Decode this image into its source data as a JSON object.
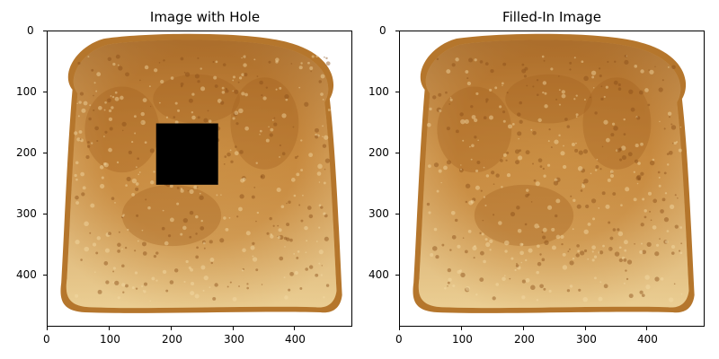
{
  "figure": {
    "panels": [
      {
        "title": "Image with Hole",
        "hole": true,
        "x_ticks": [
          "0",
          "100",
          "200",
          "300",
          "400"
        ],
        "y_ticks": [
          "0",
          "100",
          "200",
          "300",
          "400"
        ]
      },
      {
        "title": "Filled-In Image",
        "hole": false,
        "x_ticks": [
          "0",
          "100",
          "200",
          "300",
          "400"
        ],
        "y_ticks": [
          "0",
          "100",
          "200",
          "300",
          "400"
        ]
      }
    ],
    "image_extent": {
      "width": 490,
      "height": 480
    },
    "hole_region": {
      "x_from": 175,
      "x_to": 275,
      "y_from": 150,
      "y_to": 250
    },
    "colors": {
      "crust": "#b5762c",
      "toast_mid": "#d19a4d",
      "toast_light": "#e9c98c",
      "hole": "#000000"
    }
  }
}
